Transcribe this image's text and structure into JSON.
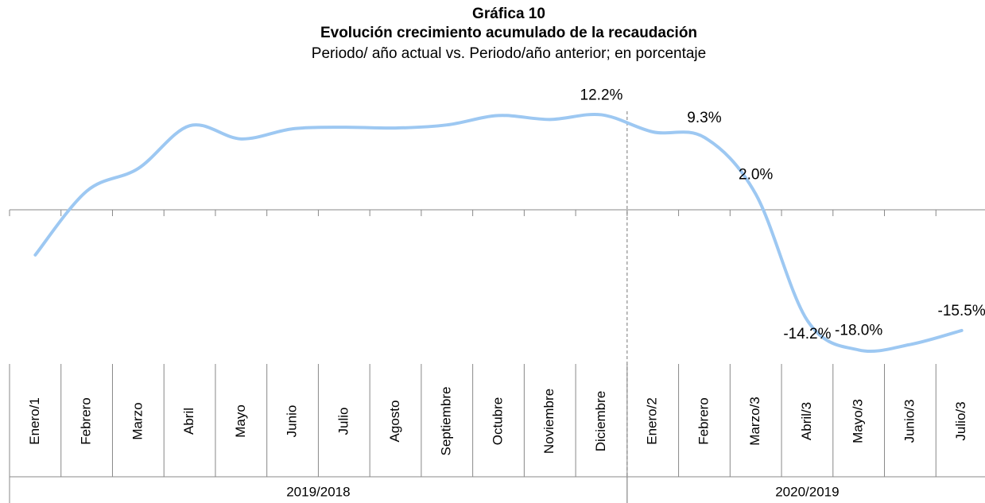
{
  "chart_data": {
    "type": "line",
    "title": "Gráfica 10",
    "subtitle": "Evolución crecimiento acumulado de la recaudación",
    "subtitle2": "Periodo/ año actual vs. Periodo/año anterior; en porcentaje",
    "categories": [
      "Enero/1",
      "Febrero",
      "Marzo",
      "Abril",
      "Mayo",
      "Junio",
      "Julio",
      "Agosto",
      "Septiembre",
      "Octubre",
      "Noviembre",
      "Diciembre",
      "Enero/2",
      "Febrero",
      "Marzo/3",
      "Abril/3",
      "Mayo/3",
      "Junio/3",
      "Julio/3"
    ],
    "values": [
      -5.8,
      2.4,
      5.3,
      10.8,
      9.1,
      10.4,
      10.6,
      10.5,
      10.9,
      12.1,
      11.6,
      12.2,
      10.0,
      9.3,
      2.0,
      -14.2,
      -18.0,
      -17.3,
      -15.5
    ],
    "value_labels": [
      null,
      null,
      null,
      null,
      null,
      null,
      null,
      null,
      null,
      null,
      null,
      "12.2%",
      null,
      "9.3%",
      "2.0%",
      "-14.2%",
      "-18.0%",
      null,
      "-15.5%"
    ],
    "groups": [
      {
        "name": "2019/2018",
        "size": 12
      },
      {
        "name": "2020/2019",
        "size": 7
      }
    ],
    "color": "#9dc8f2",
    "ylim": [
      -20,
      15
    ]
  }
}
